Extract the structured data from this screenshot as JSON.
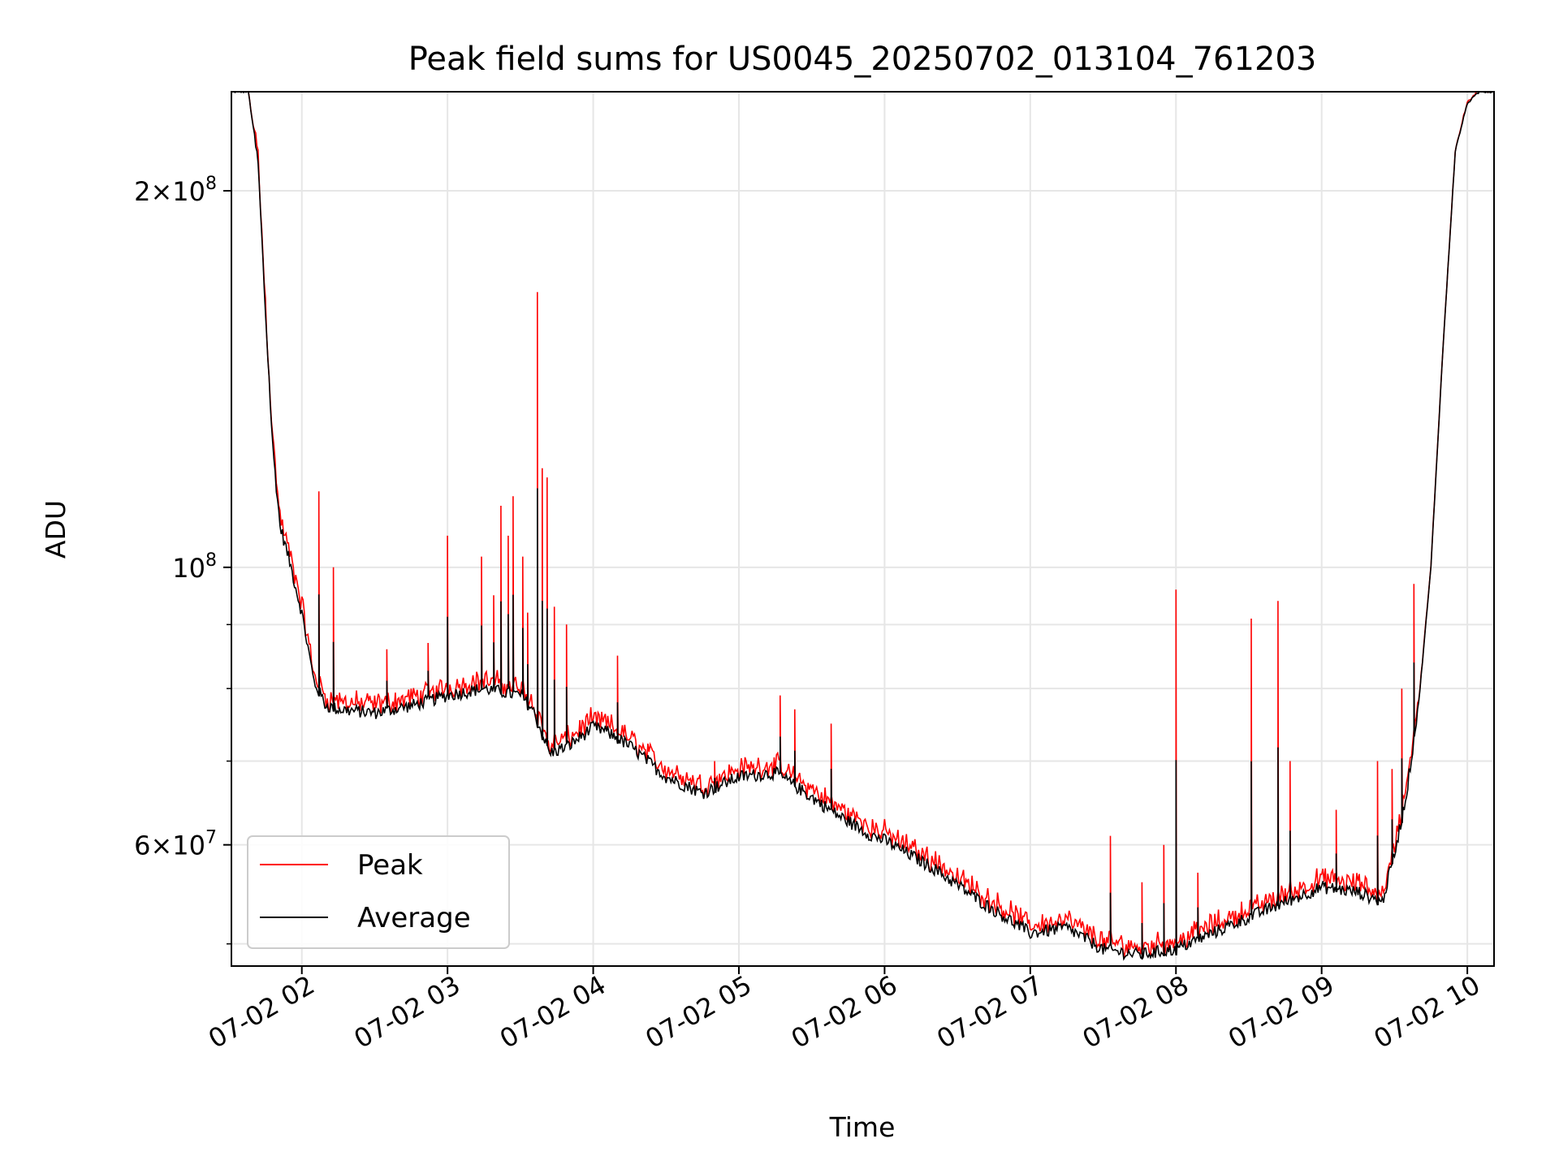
{
  "chart_data": {
    "type": "line",
    "title": "Peak field sums for US0045_20250702_013104_761203",
    "xlabel": "Time",
    "ylabel": "ADU",
    "yscale": "log",
    "xlim": [
      "07-02 01:31",
      "07-02 10:11"
    ],
    "ylim": [
      48000000,
      240000000
    ],
    "x_ticks": [
      "07-02 02",
      "07-02 03",
      "07-02 04",
      "07-02 05",
      "07-02 06",
      "07-02 07",
      "07-02 08",
      "07-02 09",
      "07-02 10"
    ],
    "y_ticks": [
      {
        "value": 200000000,
        "base": "2×10",
        "exp": "8"
      },
      {
        "value": 100000000,
        "base": "10",
        "exp": "8"
      },
      {
        "value": 60000000,
        "base": "6×10",
        "exp": "7"
      }
    ],
    "y_minor_ticks": [
      50000000,
      70000000,
      80000000,
      90000000
    ],
    "grid": true,
    "legend": {
      "position": "lower-left",
      "entries": [
        "Peak",
        "Average"
      ]
    },
    "series": [
      {
        "name": "Average",
        "color": "#000000",
        "x": [
          "07-02 01:31",
          "07-02 01:38",
          "07-02 01:42",
          "07-02 01:45",
          "07-02 01:48",
          "07-02 01:51",
          "07-02 01:55",
          "07-02 02:00",
          "07-02 02:05",
          "07-02 02:10",
          "07-02 02:15",
          "07-02 02:30",
          "07-02 02:45",
          "07-02 03:00",
          "07-02 03:15",
          "07-02 03:30",
          "07-02 03:35",
          "07-02 03:42",
          "07-02 03:50",
          "07-02 04:00",
          "07-02 04:05",
          "07-02 04:15",
          "07-02 04:30",
          "07-02 04:45",
          "07-02 05:00",
          "07-02 05:15",
          "07-02 05:25",
          "07-02 05:40",
          "07-02 05:55",
          "07-02 06:00",
          "07-02 06:20",
          "07-02 06:40",
          "07-02 07:00",
          "07-02 07:15",
          "07-02 07:30",
          "07-02 07:45",
          "07-02 08:00",
          "07-02 08:15",
          "07-02 08:30",
          "07-02 08:45",
          "07-02 09:00",
          "07-02 09:15",
          "07-02 09:25",
          "07-02 09:30",
          "07-02 09:35",
          "07-02 09:40",
          "07-02 09:45",
          "07-02 09:50",
          "07-02 09:55",
          "07-02 10:00",
          "07-02 10:05",
          "07-02 10:11"
        ],
        "y": [
          240000000,
          240000000,
          210000000,
          160000000,
          125000000,
          108000000,
          101000000,
          92000000,
          81000000,
          77500000,
          77000000,
          76500000,
          77500000,
          79000000,
          80000000,
          79000000,
          77000000,
          71000000,
          72000000,
          74500000,
          74000000,
          72000000,
          68000000,
          66000000,
          68000000,
          68500000,
          66500000,
          63500000,
          61000000,
          60500000,
          57500000,
          54000000,
          51000000,
          51500000,
          49500000,
          49000000,
          49500000,
          51000000,
          52500000,
          54000000,
          55500000,
          55000000,
          54000000,
          59000000,
          66000000,
          78000000,
          100000000,
          150000000,
          215000000,
          235000000,
          240000000,
          240000000
        ]
      },
      {
        "name": "Peak",
        "color": "#ff0000",
        "spikes": [
          {
            "x": "07-02 02:07",
            "y": 115000000
          },
          {
            "x": "07-02 02:13",
            "y": 100000000
          },
          {
            "x": "07-02 02:35",
            "y": 86000000
          },
          {
            "x": "07-02 02:52",
            "y": 87000000
          },
          {
            "x": "07-02 03:00",
            "y": 106000000
          },
          {
            "x": "07-02 03:14",
            "y": 102000000
          },
          {
            "x": "07-02 03:19",
            "y": 95000000
          },
          {
            "x": "07-02 03:22",
            "y": 112000000
          },
          {
            "x": "07-02 03:25",
            "y": 106000000
          },
          {
            "x": "07-02 03:27",
            "y": 114000000
          },
          {
            "x": "07-02 03:31",
            "y": 102000000
          },
          {
            "x": "07-02 03:33",
            "y": 92000000
          },
          {
            "x": "07-02 03:37",
            "y": 166000000
          },
          {
            "x": "07-02 03:39",
            "y": 120000000
          },
          {
            "x": "07-02 03:41",
            "y": 118000000
          },
          {
            "x": "07-02 03:44",
            "y": 93000000
          },
          {
            "x": "07-02 03:49",
            "y": 90000000
          },
          {
            "x": "07-02 04:10",
            "y": 85000000
          },
          {
            "x": "07-02 04:50",
            "y": 70000000
          },
          {
            "x": "07-02 05:17",
            "y": 79000000
          },
          {
            "x": "07-02 05:23",
            "y": 77000000
          },
          {
            "x": "07-02 05:38",
            "y": 75000000
          },
          {
            "x": "07-02 07:33",
            "y": 61000000
          },
          {
            "x": "07-02 07:46",
            "y": 56000000
          },
          {
            "x": "07-02 07:55",
            "y": 60000000
          },
          {
            "x": "07-02 08:00",
            "y": 96000000
          },
          {
            "x": "07-02 08:09",
            "y": 57000000
          },
          {
            "x": "07-02 08:31",
            "y": 91000000
          },
          {
            "x": "07-02 08:42",
            "y": 94000000
          },
          {
            "x": "07-02 08:47",
            "y": 70000000
          },
          {
            "x": "07-02 09:06",
            "y": 64000000
          },
          {
            "x": "07-02 09:23",
            "y": 70000000
          },
          {
            "x": "07-02 09:29",
            "y": 69000000
          },
          {
            "x": "07-02 09:33",
            "y": 80000000
          },
          {
            "x": "07-02 09:38",
            "y": 97000000
          }
        ]
      }
    ]
  }
}
